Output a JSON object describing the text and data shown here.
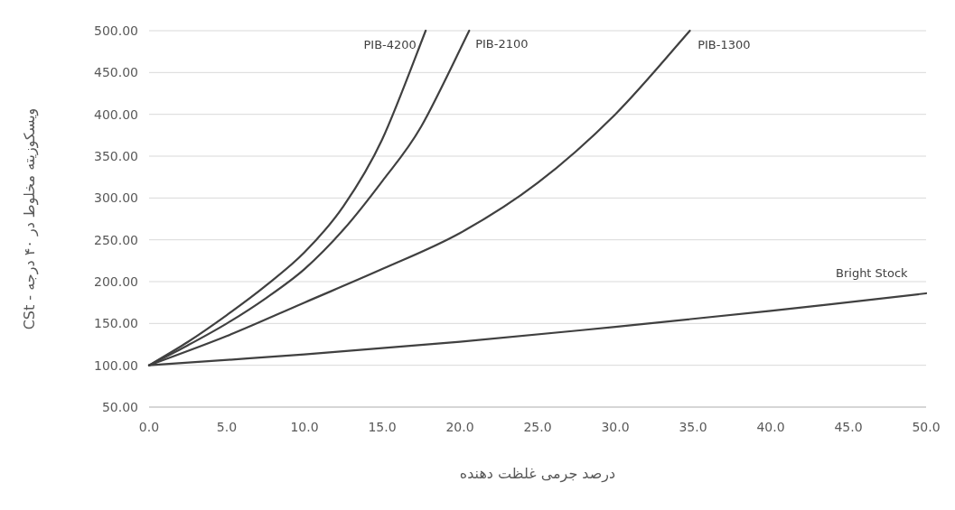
{
  "chart_data": {
    "type": "line",
    "xlabel": "درصد جرمی غلظت دهنده",
    "ylabel": "ویسکوزیته مخلوط در ۴۰ درجه - CSt",
    "xlim": [
      0,
      50
    ],
    "ylim": [
      50,
      500
    ],
    "xticks": [
      {
        "value": 0,
        "label": "0.0"
      },
      {
        "value": 5,
        "label": "5.0"
      },
      {
        "value": 10,
        "label": "10.0"
      },
      {
        "value": 15,
        "label": "15.0"
      },
      {
        "value": 20,
        "label": "20.0"
      },
      {
        "value": 25,
        "label": "25.0"
      },
      {
        "value": 30,
        "label": "30.0"
      },
      {
        "value": 35,
        "label": "35.0"
      },
      {
        "value": 40,
        "label": "40.0"
      },
      {
        "value": 45,
        "label": "45.0"
      },
      {
        "value": 50,
        "label": "50.0"
      }
    ],
    "yticks": [
      {
        "value": 50,
        "label": "50.00"
      },
      {
        "value": 100,
        "label": "100.00"
      },
      {
        "value": 150,
        "label": "150.00"
      },
      {
        "value": 200,
        "label": "200.00"
      },
      {
        "value": 250,
        "label": "250.00"
      },
      {
        "value": 300,
        "label": "300.00"
      },
      {
        "value": 350,
        "label": "350.00"
      },
      {
        "value": 400,
        "label": "400.00"
      },
      {
        "value": 450,
        "label": "450.00"
      },
      {
        "value": 500,
        "label": "500.00"
      }
    ],
    "grid": "y",
    "legend": false,
    "marker": "none",
    "line_style": "solid",
    "series": [
      {
        "name": "PIB-4200",
        "color": "#404040",
        "x": [
          0,
          2.5,
          5,
          7.5,
          10,
          12.5,
          15,
          17.8
        ],
        "values": [
          100,
          128,
          160,
          195,
          235,
          290,
          370,
          500
        ]
      },
      {
        "name": "PIB-2100",
        "color": "#404040",
        "x": [
          0,
          2.5,
          5,
          7.5,
          10,
          12.5,
          15,
          17.5,
          20.6
        ],
        "values": [
          100,
          124,
          150,
          180,
          215,
          262,
          320,
          385,
          500
        ]
      },
      {
        "name": "PIB-1300",
        "color": "#404040",
        "x": [
          0,
          5,
          10,
          15,
          20,
          25,
          30,
          34.8
        ],
        "values": [
          100,
          135,
          175,
          215,
          258,
          318,
          400,
          500
        ]
      },
      {
        "name": "Bright Stock",
        "color": "#404040",
        "x": [
          0,
          10,
          20,
          30,
          40,
          50
        ],
        "values": [
          100,
          113,
          128,
          146,
          165,
          186
        ]
      }
    ]
  }
}
